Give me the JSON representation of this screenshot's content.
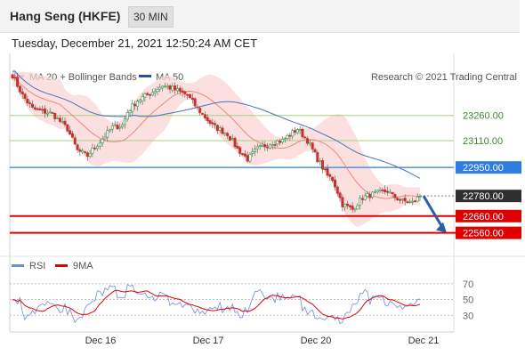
{
  "header": {
    "instrument": "Hang Seng (HKFE)",
    "timeframe": "30 MIN"
  },
  "timestamp": "Tuesday, December 21, 2021 12:50:24 AM CET",
  "legend": {
    "ma20_bb": "MA 20 + Bollinger Bands",
    "ma50": "MA 50",
    "copyright": "Research © 2021 Trading Central",
    "rsi": "RSI",
    "rsi_ma": "9MA"
  },
  "colors": {
    "bullish": "#2e9e48",
    "bearish": "#c9302c",
    "ma20": "#e88a7a",
    "ma50": "#4a6fbf",
    "bands": "#fbd5d5",
    "resistance": "#a9cf7e",
    "pivot": "#2f7de1",
    "support": "#e00000",
    "last": "#2f2f2f",
    "arrow": "#2a5ea8",
    "rsi": "#6b8fd6",
    "rsi_ma": "#e00000"
  },
  "chart_data": {
    "type": "candlestick",
    "price_axis": {
      "ylim": [
        22420,
        23630
      ]
    },
    "x_labels": [
      "Dec 16",
      "Dec 17",
      "Dec 20",
      "Dec 21"
    ],
    "levels": [
      {
        "label": "23260.00",
        "value": 23260,
        "kind": "resistance"
      },
      {
        "label": "23110.00",
        "value": 23110,
        "kind": "resistance"
      },
      {
        "label": "22950.00",
        "value": 22950,
        "kind": "pivot"
      },
      {
        "label": "22780.00",
        "value": 22780,
        "kind": "last"
      },
      {
        "label": "22660.00",
        "value": 22660,
        "kind": "support"
      },
      {
        "label": "22560.00",
        "value": 22560,
        "kind": "support"
      }
    ],
    "forecast_arrow": {
      "from": 22780,
      "to": 22560
    },
    "rsi": {
      "ticks": [
        "70",
        "50",
        "30"
      ],
      "tick_values": [
        70,
        50,
        30
      ],
      "ylim": [
        10,
        80
      ]
    },
    "grid": false
  }
}
